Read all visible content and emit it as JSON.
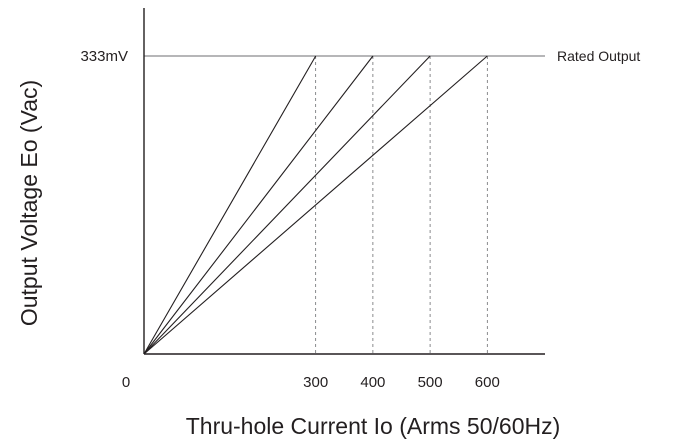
{
  "chart_data": {
    "type": "line",
    "title": "",
    "xlabel": "Thru-hole Current Io (Arms 50/60Hz)",
    "ylabel": "Output Voltage Eo (Vac)",
    "origin_label": "0",
    "xlim": [
      0,
      700
    ],
    "ylim": [
      0,
      380
    ],
    "x_ticks": [
      {
        "value": 300,
        "label": "300"
      },
      {
        "value": 400,
        "label": "400"
      },
      {
        "value": 500,
        "label": "500"
      },
      {
        "value": 600,
        "label": "600"
      }
    ],
    "y_ticks": [
      {
        "value": 333,
        "label": "333mV"
      }
    ],
    "reference_line": {
      "y": 333,
      "label": "Rated Output"
    },
    "grid": "vertical dashed at rated currents",
    "series": [
      {
        "points": [
          [
            0,
            0
          ],
          [
            300,
            333
          ]
        ]
      },
      {
        "points": [
          [
            0,
            0
          ],
          [
            400,
            333
          ]
        ]
      },
      {
        "points": [
          [
            0,
            0
          ],
          [
            500,
            333
          ]
        ]
      },
      {
        "points": [
          [
            0,
            0
          ],
          [
            600,
            333
          ]
        ]
      }
    ]
  }
}
